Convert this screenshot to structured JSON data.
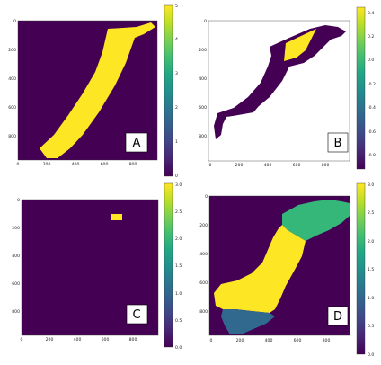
{
  "chart_data": [
    {
      "type": "heatmap",
      "panel_label": "A",
      "xticks": [
        "0",
        "200",
        "400",
        "600",
        "800"
      ],
      "yticks": [
        "0",
        "200",
        "400",
        "600",
        "800"
      ],
      "colorbar": {
        "ticks": [
          "0",
          "1",
          "2",
          "3",
          "4",
          "5"
        ],
        "range": [
          0,
          5
        ]
      },
      "regions": [
        {
          "value": 5,
          "description_color": "#fde725"
        }
      ],
      "background_value": 0
    },
    {
      "type": "heatmap",
      "panel_label": "B",
      "xticks": [
        "0",
        "200",
        "400",
        "600",
        "800"
      ],
      "yticks": [
        "0",
        "200",
        "400",
        "600",
        "800"
      ],
      "colorbar": {
        "ticks": [
          "0.4",
          "0.2",
          "0.0",
          "-0.2",
          "-0.4",
          "-0.6",
          "-0.8"
        ],
        "range": [
          -0.9,
          0.45
        ]
      },
      "background": "white",
      "regions": [
        {
          "value": -0.9,
          "color": "#440154"
        },
        {
          "value": 0.45,
          "color": "#fde725"
        }
      ]
    },
    {
      "type": "heatmap",
      "panel_label": "C",
      "xticks": [
        "0",
        "200",
        "400",
        "600",
        "800"
      ],
      "yticks": [
        "0",
        "200",
        "400",
        "600",
        "800"
      ],
      "colorbar": {
        "ticks": [
          "0.0",
          "0.5",
          "1.0",
          "1.5",
          "2.0",
          "2.5",
          "3.0"
        ],
        "range": [
          0,
          3
        ]
      },
      "regions": [
        {
          "value": 3,
          "color": "#fde725"
        }
      ],
      "background_value": 0
    },
    {
      "type": "heatmap",
      "panel_label": "D",
      "xticks": [
        "0",
        "200",
        "400",
        "600",
        "800"
      ],
      "yticks": [
        "0",
        "200",
        "400",
        "600",
        "800"
      ],
      "colorbar": {
        "ticks": [
          "0.0",
          "0.5",
          "1.0",
          "1.5",
          "2.0",
          "2.5",
          "3.0"
        ],
        "range": [
          0,
          3
        ]
      },
      "regions": [
        {
          "value": 2,
          "color": "#35b779"
        },
        {
          "value": 3,
          "color": "#fde725"
        },
        {
          "value": 1,
          "color": "#31688e"
        }
      ],
      "background_value": 0
    }
  ],
  "colors": {
    "viridis_low": "#440154",
    "viridis_mid_low": "#31688e",
    "viridis_mid": "#35b779",
    "viridis_high": "#fde725"
  }
}
